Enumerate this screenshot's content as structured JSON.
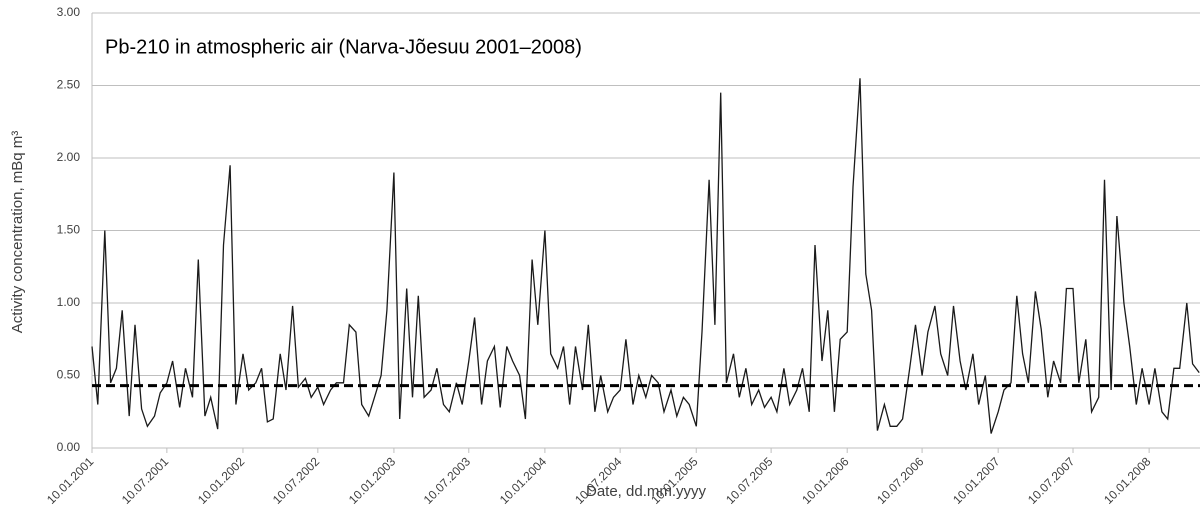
{
  "chart_data": {
    "type": "line",
    "title": "Pb-210 in atmospheric air (Narva-Jõesuu 2001–2008)",
    "x_label": "Date, dd.mm.yyyy",
    "y_label": "Activity concentration, mBq m³",
    "x": [
      "2001-01-10",
      "2001-01-24",
      "2001-02-10",
      "2001-02-24",
      "2001-03-10",
      "2001-03-24",
      "2001-04-10",
      "2001-04-24",
      "2001-05-10",
      "2001-05-24",
      "2001-06-10",
      "2001-06-24",
      "2001-07-10",
      "2001-07-24",
      "2001-08-10",
      "2001-08-24",
      "2001-09-10",
      "2001-09-24",
      "2001-10-10",
      "2001-10-24",
      "2001-11-10",
      "2001-11-24",
      "2001-12-10",
      "2001-12-24",
      "2002-01-10",
      "2002-01-24",
      "2002-02-10",
      "2002-02-24",
      "2002-03-10",
      "2002-03-24",
      "2002-04-10",
      "2002-04-24",
      "2002-05-10",
      "2002-05-24",
      "2002-06-10",
      "2002-06-24",
      "2002-07-10",
      "2002-07-24",
      "2002-08-10",
      "2002-08-24",
      "2002-09-10",
      "2002-09-24",
      "2002-10-10",
      "2002-10-24",
      "2002-11-10",
      "2002-11-24",
      "2002-12-10",
      "2002-12-24",
      "2003-01-10",
      "2003-01-24",
      "2003-02-10",
      "2003-02-24",
      "2003-03-10",
      "2003-03-24",
      "2003-04-10",
      "2003-04-24",
      "2003-05-10",
      "2003-05-24",
      "2003-06-10",
      "2003-06-24",
      "2003-07-10",
      "2003-07-24",
      "2003-08-10",
      "2003-08-24",
      "2003-09-10",
      "2003-09-24",
      "2003-10-10",
      "2003-10-24",
      "2003-11-10",
      "2003-11-24",
      "2003-12-10",
      "2003-12-24",
      "2004-01-10",
      "2004-01-24",
      "2004-02-10",
      "2004-02-24",
      "2004-03-10",
      "2004-03-24",
      "2004-04-10",
      "2004-04-24",
      "2004-05-10",
      "2004-05-24",
      "2004-06-10",
      "2004-06-24",
      "2004-07-10",
      "2004-07-24",
      "2004-08-10",
      "2004-08-24",
      "2004-09-10",
      "2004-09-24",
      "2004-10-10",
      "2004-10-24",
      "2004-11-10",
      "2004-11-24",
      "2004-12-10",
      "2004-12-24",
      "2005-01-10",
      "2005-01-24",
      "2005-02-10",
      "2005-02-24",
      "2005-03-10",
      "2005-03-24",
      "2005-04-10",
      "2005-04-24",
      "2005-05-10",
      "2005-05-24",
      "2005-06-10",
      "2005-06-24",
      "2005-07-10",
      "2005-07-24",
      "2005-08-10",
      "2005-08-24",
      "2005-09-10",
      "2005-09-24",
      "2005-10-10",
      "2005-10-24",
      "2005-11-10",
      "2005-11-24",
      "2005-12-10",
      "2005-12-24",
      "2006-01-10",
      "2006-01-24",
      "2006-02-10",
      "2006-02-24",
      "2006-03-10",
      "2006-03-24",
      "2006-04-10",
      "2006-04-24",
      "2006-05-10",
      "2006-05-24",
      "2006-06-10",
      "2006-06-24",
      "2006-07-10",
      "2006-07-24",
      "2006-08-10",
      "2006-08-24",
      "2006-09-10",
      "2006-09-24",
      "2006-10-10",
      "2006-10-24",
      "2006-11-10",
      "2006-11-24",
      "2006-12-10",
      "2006-12-24",
      "2007-01-10",
      "2007-01-24",
      "2007-02-10",
      "2007-02-24",
      "2007-03-10",
      "2007-03-24",
      "2007-04-10",
      "2007-04-24",
      "2007-05-10",
      "2007-05-24",
      "2007-06-10",
      "2007-06-24",
      "2007-07-10",
      "2007-07-24",
      "2007-08-10",
      "2007-08-24",
      "2007-09-10",
      "2007-09-24",
      "2007-10-10",
      "2007-10-24",
      "2007-11-10",
      "2007-11-24",
      "2007-12-10",
      "2007-12-24",
      "2008-01-10",
      "2008-01-24",
      "2008-02-10",
      "2008-02-24",
      "2008-03-10",
      "2008-03-24",
      "2008-04-10",
      "2008-04-24",
      "2008-05-10"
    ],
    "series": [
      {
        "color": "#1a1a1a",
        "values": [
          0.7,
          0.3,
          1.5,
          0.45,
          0.55,
          0.95,
          0.22,
          0.85,
          0.27,
          0.15,
          0.22,
          0.38,
          0.45,
          0.6,
          0.28,
          0.55,
          0.35,
          1.3,
          0.22,
          0.35,
          0.13,
          1.4,
          1.95,
          0.3,
          0.65,
          0.4,
          0.45,
          0.55,
          0.18,
          0.2,
          0.65,
          0.4,
          0.98,
          0.42,
          0.48,
          0.35,
          0.42,
          0.3,
          0.4,
          0.45,
          0.45,
          0.85,
          0.8,
          0.3,
          0.22,
          0.35,
          0.5,
          0.95,
          1.9,
          0.2,
          1.1,
          0.35,
          1.05,
          0.35,
          0.4,
          0.55,
          0.3,
          0.25,
          0.45,
          0.3,
          0.6,
          0.9,
          0.3,
          0.6,
          0.7,
          0.28,
          0.7,
          0.6,
          0.5,
          0.2,
          1.3,
          0.85,
          1.5,
          0.65,
          0.55,
          0.7,
          0.3,
          0.7,
          0.4,
          0.85,
          0.25,
          0.5,
          0.25,
          0.35,
          0.4,
          0.75,
          0.3,
          0.5,
          0.35,
          0.5,
          0.45,
          0.25,
          0.4,
          0.22,
          0.35,
          0.3,
          0.15,
          0.8,
          1.85,
          0.85,
          2.45,
          0.45,
          0.65,
          0.35,
          0.55,
          0.3,
          0.4,
          0.28,
          0.35,
          0.25,
          0.55,
          0.3,
          0.4,
          0.55,
          0.25,
          1.4,
          0.6,
          0.95,
          0.25,
          0.75,
          0.8,
          1.8,
          2.55,
          1.2,
          0.95,
          0.12,
          0.3,
          0.15,
          0.15,
          0.2,
          0.55,
          0.85,
          0.5,
          0.8,
          0.98,
          0.65,
          0.5,
          0.98,
          0.6,
          0.4,
          0.65,
          0.3,
          0.5,
          0.1,
          0.25,
          0.4,
          0.45,
          1.05,
          0.65,
          0.45,
          1.08,
          0.82,
          0.35,
          0.6,
          0.45,
          1.1,
          1.1,
          0.45,
          0.75,
          0.25,
          0.35,
          1.85,
          0.4,
          1.6,
          1.0,
          0.7,
          0.3,
          0.55,
          0.3,
          0.55,
          0.25,
          0.2,
          0.55,
          0.55,
          1.0,
          0.58,
          0.52
        ]
      }
    ],
    "mean_line": 0.43,
    "mean_line_color": "#000000",
    "xlim": [
      "2001-01-10",
      "2008-05-12"
    ],
    "xticks": [
      {
        "value": "2001-01-10",
        "label": "10.01.2001"
      },
      {
        "value": "2001-07-10",
        "label": "10.07.2001"
      },
      {
        "value": "2002-01-10",
        "label": "10.01.2002"
      },
      {
        "value": "2002-07-10",
        "label": "10.07.2002"
      },
      {
        "value": "2003-01-10",
        "label": "10.01.2003"
      },
      {
        "value": "2003-07-10",
        "label": "10.07.2003"
      },
      {
        "value": "2004-01-10",
        "label": "10.01.2004"
      },
      {
        "value": "2004-07-10",
        "label": "10.07.2004"
      },
      {
        "value": "2005-01-10",
        "label": "10.01.2005"
      },
      {
        "value": "2005-07-10",
        "label": "10.07.2005"
      },
      {
        "value": "2006-01-10",
        "label": "10.01.2006"
      },
      {
        "value": "2006-07-10",
        "label": "10.07.2006"
      },
      {
        "value": "2007-01-10",
        "label": "10.01.2007"
      },
      {
        "value": "2007-07-10",
        "label": "10.07.2007"
      },
      {
        "value": "2008-01-10",
        "label": "10.01.2008"
      }
    ],
    "ylim": [
      0,
      3
    ],
    "yticks": [
      {
        "value": 0,
        "label": "0.00"
      },
      {
        "value": 0.5,
        "label": "0.50"
      },
      {
        "value": 1,
        "label": "1.00"
      },
      {
        "value": 1.5,
        "label": "1.50"
      },
      {
        "value": 2,
        "label": "2.00"
      },
      {
        "value": 2.5,
        "label": "2.50"
      },
      {
        "value": 3,
        "label": "3.00"
      }
    ],
    "grid": true
  }
}
